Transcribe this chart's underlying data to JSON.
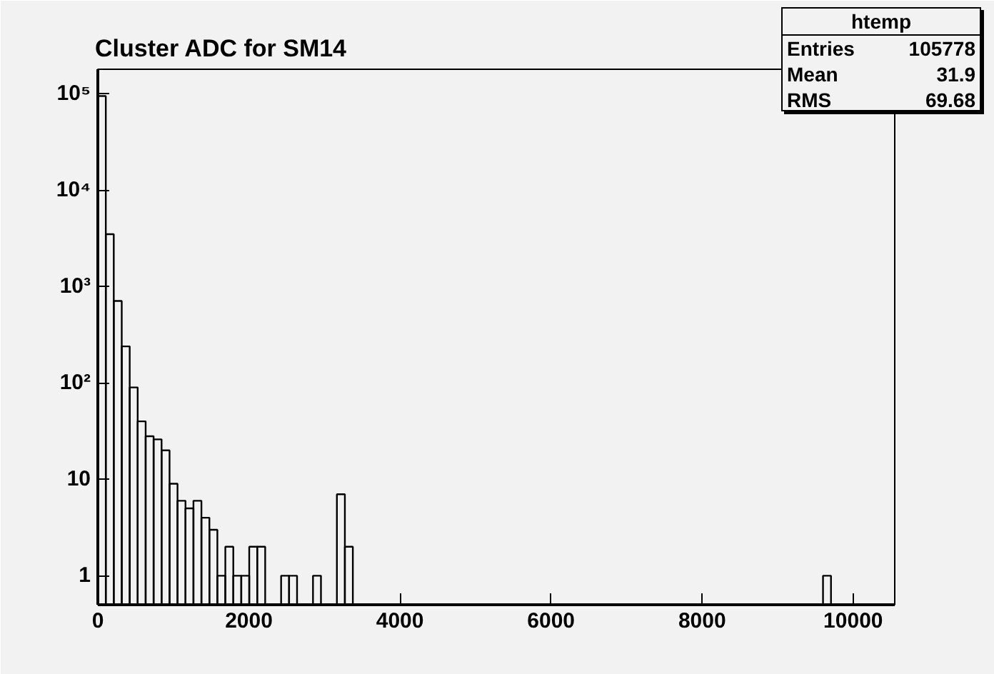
{
  "chart_data": {
    "type": "histogram",
    "title": "Cluster ADC for SM14",
    "bins": [
      0,
      105.5,
      211,
      316.5,
      422,
      527.5,
      633,
      738.5,
      844,
      949.5,
      1055,
      1160.5,
      1266,
      1371.5,
      1477,
      1582.5,
      1688,
      1793.5,
      1899,
      2004.5,
      2110,
      2215.5,
      2321,
      2426.5,
      2532,
      2637.5,
      2743,
      2848.5,
      2954,
      3059.5,
      3165,
      3270.5,
      3376,
      3481.5,
      3587,
      3692.5,
      3798,
      3903.5,
      4009,
      4114.5,
      4220,
      4325.5,
      4431,
      4536.5,
      4642,
      4747.5,
      4853,
      4958.5,
      5064,
      5169.5,
      5275,
      5380.5,
      5486,
      5591.5,
      5697,
      5802.5,
      5908,
      6013.5,
      6119,
      6224.5,
      6330,
      6435.5,
      6541,
      6646.5,
      6752,
      6857.5,
      6963,
      7068.5,
      7174,
      7279.5,
      7385,
      7490.5,
      7596,
      7701.5,
      7807,
      7912.5,
      8018,
      8123.5,
      8229,
      8334.5,
      8440,
      8545.5,
      8651,
      8756.5,
      8862,
      8967.5,
      9073,
      9178.5,
      9284,
      9389.5,
      9495,
      9600.5,
      9706,
      9811.5,
      9917,
      10022.5,
      10128,
      10233.5,
      10339,
      10444.5,
      10550
    ],
    "values": [
      95000,
      3500,
      710,
      240,
      90,
      40,
      28,
      26,
      20,
      9,
      6,
      5,
      6,
      4,
      3,
      1,
      2,
      1,
      1,
      2,
      2,
      null,
      null,
      1,
      1,
      null,
      null,
      1,
      null,
      null,
      7,
      2,
      null,
      null,
      null,
      null,
      null,
      null,
      null,
      null,
      null,
      null,
      null,
      null,
      null,
      null,
      null,
      null,
      null,
      null,
      null,
      null,
      null,
      null,
      null,
      null,
      null,
      null,
      null,
      null,
      null,
      null,
      null,
      null,
      null,
      null,
      null,
      null,
      null,
      null,
      null,
      null,
      null,
      null,
      null,
      null,
      null,
      null,
      null,
      null,
      null,
      null,
      null,
      null,
      null,
      null,
      null,
      null,
      null,
      null,
      null,
      1,
      null,
      null,
      null,
      null,
      null,
      null,
      null,
      null
    ],
    "color": "#000000",
    "log": "y",
    "xlim": [
      0,
      10550
    ],
    "ylim": [
      0.5,
      180000
    ],
    "xticks": [
      0,
      2000,
      4000,
      6000,
      8000,
      10000
    ],
    "yticks": [
      1,
      10,
      {
        "value": 100,
        "label": "10²"
      },
      {
        "value": 1000,
        "label": "10³"
      },
      {
        "value": 10000,
        "label": "10⁴"
      },
      {
        "value": 100000,
        "label": "10⁵"
      }
    ],
    "grid": false,
    "annotations": [
      "htemp",
      "Entries 105778",
      "Mean 31.9",
      "RMS 69.68"
    ]
  }
}
